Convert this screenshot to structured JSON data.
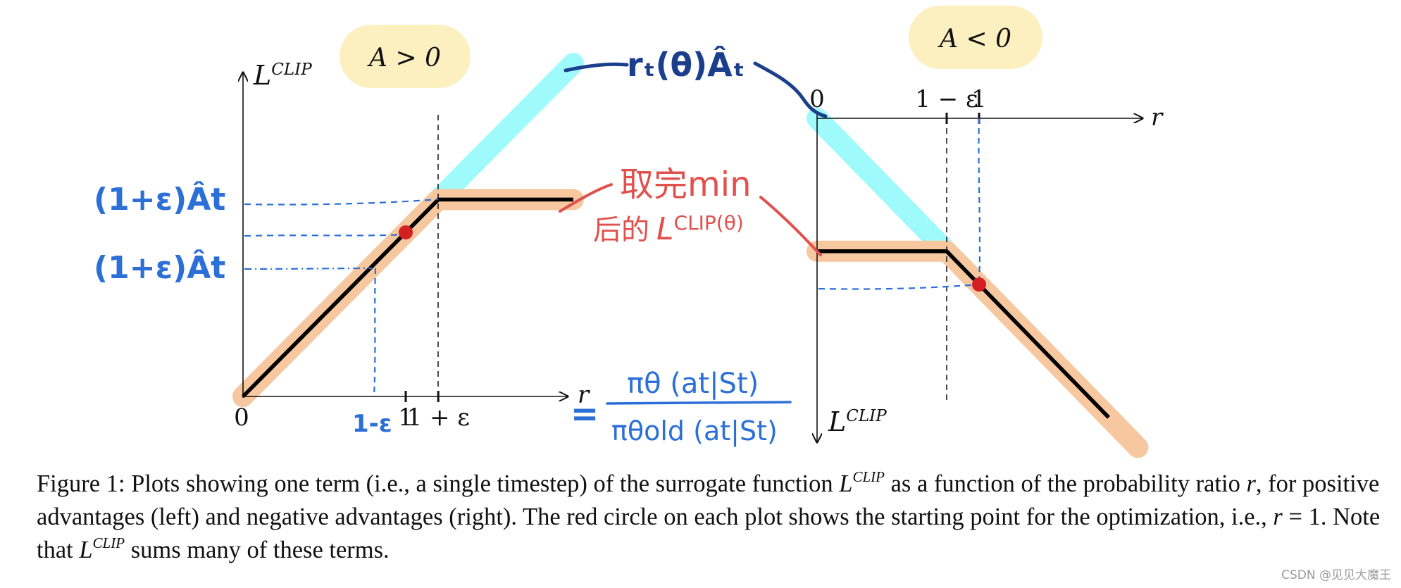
{
  "chart_data": [
    {
      "type": "line",
      "panel": "left",
      "condition_label": "A > 0",
      "ylabel": "L",
      "ylabel_sup": "CLIP",
      "xlabel": "r",
      "x_ticks": [
        {
          "value": 0,
          "label": "0"
        },
        {
          "value": 1,
          "label": "1"
        },
        {
          "value": 1.2,
          "label": "1 + ε"
        }
      ],
      "series": [
        {
          "role": "unclipped",
          "color": "#9ffafc",
          "x": [
            0,
            2.03
          ],
          "y": [
            0,
            2.03
          ]
        },
        {
          "role": "clipped",
          "color": "#f7c79f",
          "x": [
            0,
            0.8,
            1.2,
            2.03
          ],
          "y": [
            0,
            0.8,
            1.2,
            1.2
          ]
        },
        {
          "role": "min",
          "color": "#000000",
          "x": [
            0,
            1.2,
            2.03
          ],
          "y": [
            0,
            1.2,
            1.2
          ]
        }
      ],
      "start_point": {
        "x": 1,
        "y": 1,
        "color": "#d42020"
      }
    },
    {
      "type": "line",
      "panel": "right",
      "condition_label": "A < 0",
      "ylabel": "L",
      "ylabel_sup": "CLIP",
      "xlabel": "r",
      "x_ticks": [
        {
          "value": 0,
          "label": "0"
        },
        {
          "value": 0.8,
          "label": "1 − ε"
        },
        {
          "value": 1,
          "label": "1"
        }
      ],
      "series": [
        {
          "role": "unclipped",
          "color": "#9ffafc",
          "x": [
            0,
            1.98
          ],
          "y": [
            0,
            -1.98
          ]
        },
        {
          "role": "clipped",
          "color": "#f7c79f",
          "x": [
            0,
            0.8,
            1.2,
            1.98
          ],
          "y": [
            -0.8,
            -0.8,
            -1.2,
            -1.98
          ]
        },
        {
          "role": "min",
          "color": "#000000",
          "x": [
            0,
            0.8,
            1.8
          ],
          "y": [
            -0.8,
            -0.8,
            -1.8
          ]
        }
      ],
      "start_point": {
        "x": 1,
        "y": -1,
        "color": "#d42020"
      }
    }
  ],
  "annotations": {
    "objective": "rₜ(θ)Âₜ",
    "clip_level_upper": "(1+ε)Ât",
    "clip_level_lower": "(1+ε)Ât",
    "one_minus_eps": "1-ε",
    "min_note_line1": "取完min",
    "min_note_line2": "后的",
    "min_note_L": "L",
    "min_note_sup": "CLIP(θ)",
    "ratio_equals": "=",
    "ratio_numerator": "πθ (at|St)",
    "ratio_denominator": "πθold (at|St)"
  },
  "caption": {
    "part1": "Figure 1: Plots showing one term (i.e., a single timestep) of the surrogate function ",
    "L": "L",
    "sup": "CLIP",
    "part2": " as a function of the probability ratio ",
    "r1": "r",
    "part3": ", for positive advantages (left) and negative advantages (right). The red circle on each plot shows the starting point for the optimization, i.e., ",
    "r2": "r",
    "part4": " = 1. Note that ",
    "L2": "L",
    "sup2": "CLIP",
    "part5": " sums many of these terms."
  },
  "watermark": "CSDN @见见大魔王",
  "colors": {
    "unclipped": "#9ffafc",
    "clipped": "#f7c79f",
    "min_curve": "#000000",
    "start_point": "#d42020",
    "label_bubble": "#fcefc0",
    "handwriting_blue": "#2c6fd6",
    "handwriting_dark_blue": "#1c3f8c",
    "handwriting_red": "#e0504c"
  }
}
